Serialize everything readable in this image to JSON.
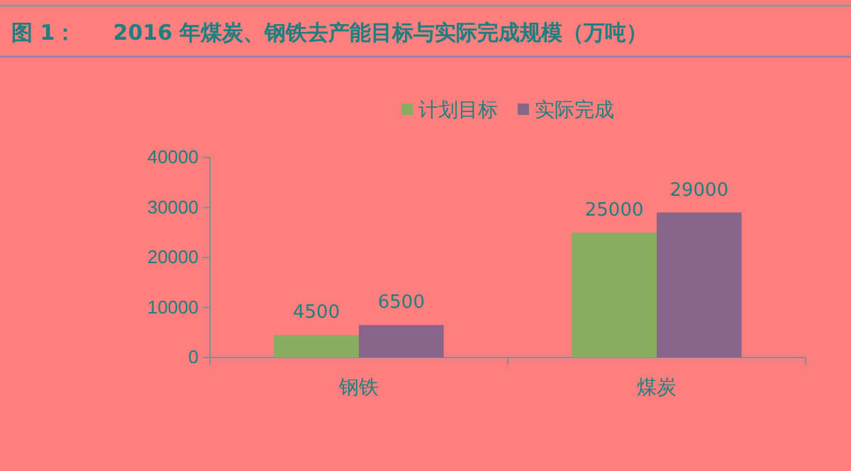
{
  "chart_data": {
    "type": "bar",
    "title": "图 1：     2016 年煤炭、钢铁去产能目标与实际完成规模（万吨）",
    "categories": [
      "钢铁",
      "煤炭"
    ],
    "series": [
      {
        "name": "计划目标",
        "color": "#88ad5e",
        "values": [
          4500,
          25000
        ]
      },
      {
        "name": "实际完成",
        "color": "#876689",
        "values": [
          6500,
          29000
        ]
      }
    ],
    "ylim": [
      0,
      40000
    ],
    "yticks": [
      0,
      10000,
      20000,
      30000,
      40000
    ],
    "grid": false,
    "legend": "top",
    "data_labels": true
  }
}
